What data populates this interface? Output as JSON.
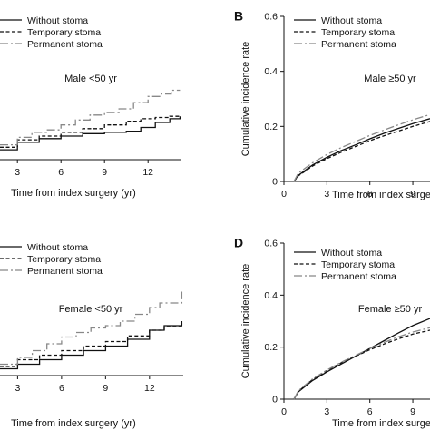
{
  "chart_data": [
    {
      "panel": "A",
      "show_letter": false,
      "type": "line",
      "step": true,
      "title": "Male <50 yr",
      "xlabel": "Time from index surgery (yr)",
      "ylabel": "",
      "xlim": [
        1.8,
        14.3
      ],
      "ylim": [
        0,
        0.6
      ],
      "x_ticks": [
        3,
        6,
        9,
        12
      ],
      "y_ticks": [],
      "legend": "top-left",
      "series": [
        {
          "name": "Without stoma",
          "style": "solid",
          "color": "#111111",
          "x": [
            1.8,
            3,
            4.5,
            6,
            7.5,
            9,
            10.5,
            11.5,
            12.5,
            13.5,
            14.2
          ],
          "y": [
            0.04,
            0.07,
            0.085,
            0.095,
            0.105,
            0.11,
            0.115,
            0.13,
            0.15,
            0.165,
            0.175
          ]
        },
        {
          "name": "Temporary stoma",
          "style": "dashed",
          "color": "#111111",
          "x": [
            1.8,
            3,
            4.5,
            6,
            7.5,
            9,
            10.5,
            11.5,
            12.5,
            13.5,
            14.2
          ],
          "y": [
            0.05,
            0.08,
            0.095,
            0.11,
            0.125,
            0.14,
            0.155,
            0.165,
            0.17,
            0.175,
            0.175
          ]
        },
        {
          "name": "Permanent stoma",
          "style": "dashdot",
          "color": "#888888",
          "x": [
            1.8,
            3,
            4,
            5,
            6,
            7,
            8,
            9,
            10,
            11,
            12,
            12.8,
            13.6,
            14.2
          ],
          "y": [
            0.06,
            0.09,
            0.11,
            0.12,
            0.14,
            0.16,
            0.18,
            0.19,
            0.205,
            0.23,
            0.255,
            0.265,
            0.28,
            0.28
          ]
        }
      ]
    },
    {
      "panel": "B",
      "show_letter": true,
      "type": "line",
      "step": false,
      "title": "Male ≥50 yr",
      "xlabel": "Time from index surgery",
      "ylabel": "Cumulative incidence rate",
      "xlim": [
        0,
        10.2
      ],
      "ylim": [
        0,
        0.6
      ],
      "x_ticks": [
        0,
        3,
        6,
        9
      ],
      "y_ticks": [
        0,
        0.2,
        0.4,
        0.6
      ],
      "legend": "top-left",
      "series": [
        {
          "name": "Without stoma",
          "style": "solid",
          "color": "#111111",
          "x": [
            0.7,
            1,
            2,
            3,
            4,
            5,
            6,
            7,
            8,
            9,
            10.2
          ],
          "y": [
            0,
            0.022,
            0.06,
            0.088,
            0.112,
            0.133,
            0.155,
            0.175,
            0.193,
            0.21,
            0.228
          ]
        },
        {
          "name": "Temporary stoma",
          "style": "dashed",
          "color": "#111111",
          "x": [
            0.7,
            1,
            2,
            3,
            4,
            5,
            6,
            7,
            8,
            9,
            10.2
          ],
          "y": [
            0,
            0.02,
            0.056,
            0.083,
            0.106,
            0.127,
            0.148,
            0.166,
            0.183,
            0.2,
            0.218
          ]
        },
        {
          "name": "Permanent stoma",
          "style": "dashdot",
          "color": "#888888",
          "x": [
            0.7,
            1,
            2,
            3,
            4,
            5,
            6,
            7,
            8,
            9,
            10.2
          ],
          "y": [
            0,
            0.03,
            0.068,
            0.098,
            0.123,
            0.145,
            0.167,
            0.187,
            0.206,
            0.224,
            0.243
          ]
        }
      ]
    },
    {
      "panel": "C",
      "show_letter": false,
      "type": "line",
      "step": true,
      "title": "Female <50 yr",
      "xlabel": "Time from index surgery (yr)",
      "ylabel": "",
      "xlim": [
        1.8,
        14.3
      ],
      "ylim": [
        0,
        0.6
      ],
      "x_ticks": [
        3,
        6,
        9,
        12
      ],
      "y_ticks": [],
      "legend": "top-left",
      "series": [
        {
          "name": "Without stoma",
          "style": "solid",
          "color": "#111111",
          "x": [
            1.8,
            3,
            4.5,
            6,
            7.5,
            9,
            10.5,
            12,
            13,
            14.2
          ],
          "y": [
            0.03,
            0.05,
            0.07,
            0.09,
            0.11,
            0.13,
            0.16,
            0.2,
            0.22,
            0.24
          ]
        },
        {
          "name": "Temporary stoma",
          "style": "dashed",
          "color": "#111111",
          "x": [
            1.8,
            3,
            4.5,
            6,
            7.5,
            9,
            10.5,
            12,
            13,
            14.2
          ],
          "y": [
            0.04,
            0.07,
            0.09,
            0.11,
            0.13,
            0.15,
            0.175,
            0.2,
            0.215,
            0.23
          ]
        },
        {
          "name": "Permanent stoma",
          "style": "dashdot",
          "color": "#888888",
          "x": [
            1.8,
            3,
            4,
            5,
            6,
            7,
            8,
            9,
            10,
            11,
            12,
            12.7,
            14,
            14.2
          ],
          "y": [
            0.05,
            0.08,
            0.11,
            0.14,
            0.17,
            0.19,
            0.21,
            0.22,
            0.24,
            0.27,
            0.3,
            0.32,
            0.32,
            0.37
          ]
        }
      ]
    },
    {
      "panel": "D",
      "show_letter": true,
      "type": "line",
      "step": false,
      "title": "Female ≥50 yr",
      "xlabel": "Time from index surgery",
      "ylabel": "Cumulative incidence rate",
      "xlim": [
        0,
        10.2
      ],
      "ylim": [
        0,
        0.6
      ],
      "x_ticks": [
        0,
        3,
        6,
        9
      ],
      "y_ticks": [
        0,
        0.2,
        0.4,
        0.6
      ],
      "legend": "top-left",
      "series": [
        {
          "name": "Without stoma",
          "style": "solid",
          "color": "#111111",
          "x": [
            0.7,
            1,
            2,
            3,
            4,
            5,
            6,
            7,
            8,
            9,
            10.2
          ],
          "y": [
            0,
            0.028,
            0.072,
            0.105,
            0.135,
            0.165,
            0.195,
            0.225,
            0.255,
            0.283,
            0.31
          ]
        },
        {
          "name": "Temporary stoma",
          "style": "dashed",
          "color": "#111111",
          "x": [
            0.7,
            1,
            2,
            3,
            4,
            5,
            6,
            7,
            8,
            9,
            10.2
          ],
          "y": [
            0,
            0.03,
            0.075,
            0.11,
            0.14,
            0.165,
            0.19,
            0.212,
            0.232,
            0.25,
            0.265
          ]
        },
        {
          "name": "Permanent stoma",
          "style": "dashdot",
          "color": "#888888",
          "x": [
            0.7,
            1,
            2,
            3,
            4,
            5,
            6,
            7,
            8,
            9,
            10.2
          ],
          "y": [
            0,
            0.032,
            0.078,
            0.112,
            0.142,
            0.168,
            0.195,
            0.218,
            0.24,
            0.258,
            0.275
          ]
        }
      ]
    }
  ]
}
